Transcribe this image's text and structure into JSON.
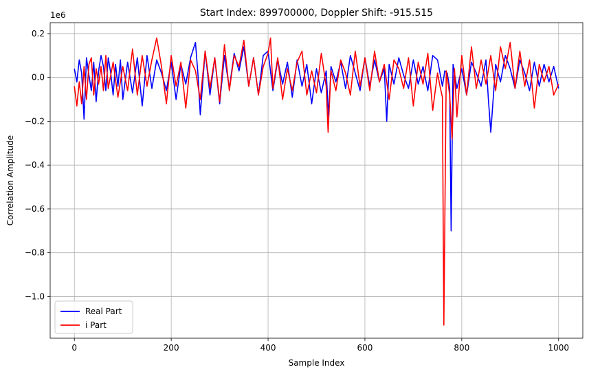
{
  "chart_data": {
    "type": "line",
    "title": "Start Index: 899700000, Doppler Shift: -915.515",
    "xlabel": "Sample Index",
    "ylabel": "Correlation Amplitude",
    "y_offset_label": "1e6",
    "xlim": [
      -50,
      1050
    ],
    "ylim": [
      -1.19,
      0.25
    ],
    "x_ticks": [
      0,
      200,
      400,
      600,
      800,
      1000
    ],
    "x_tick_labels": [
      "0",
      "200",
      "400",
      "600",
      "800",
      "1000"
    ],
    "y_ticks": [
      0.2,
      0.0,
      -0.2,
      -0.4,
      -0.6,
      -0.8,
      -1.0
    ],
    "y_tick_labels": [
      "0.2",
      "0.0",
      "−0.2",
      "−0.4",
      "−0.6",
      "−0.8",
      "−1.0"
    ],
    "grid": true,
    "legend_position": "lower-left",
    "series": [
      {
        "name": "Real Part",
        "color": "#0000ff",
        "x": [
          0,
          5,
          10,
          15,
          20,
          25,
          30,
          35,
          40,
          45,
          50,
          55,
          60,
          65,
          70,
          75,
          80,
          85,
          90,
          95,
          100,
          110,
          120,
          130,
          140,
          150,
          160,
          170,
          180,
          190,
          200,
          210,
          220,
          230,
          240,
          250,
          255,
          260,
          270,
          280,
          290,
          300,
          310,
          320,
          330,
          340,
          350,
          360,
          370,
          380,
          390,
          400,
          410,
          420,
          430,
          440,
          450,
          460,
          470,
          480,
          490,
          500,
          510,
          520,
          525,
          530,
          540,
          550,
          560,
          570,
          580,
          590,
          600,
          610,
          620,
          630,
          640,
          645,
          650,
          660,
          670,
          680,
          690,
          700,
          710,
          720,
          730,
          740,
          750,
          755,
          760,
          765,
          770,
          775,
          778,
          782,
          790,
          800,
          810,
          820,
          830,
          840,
          850,
          855,
          860,
          870,
          880,
          890,
          900,
          910,
          920,
          930,
          940,
          950,
          960,
          970,
          980,
          990,
          1000
        ],
        "y": [
          0.04,
          -0.02,
          0.08,
          0.02,
          -0.19,
          0.09,
          0.01,
          -0.06,
          0.07,
          -0.11,
          0.03,
          0.1,
          0.05,
          -0.06,
          0.09,
          0.02,
          -0.08,
          0.06,
          -0.04,
          0.08,
          -0.1,
          0.07,
          -0.07,
          0.09,
          -0.13,
          0.1,
          -0.05,
          0.08,
          0.02,
          -0.06,
          0.07,
          -0.1,
          0.06,
          -0.03,
          0.09,
          0.16,
          0.02,
          -0.17,
          0.12,
          -0.08,
          0.09,
          -0.12,
          0.1,
          -0.05,
          0.11,
          0.03,
          0.14,
          -0.04,
          0.09,
          -0.08,
          0.1,
          0.12,
          -0.06,
          0.08,
          -0.03,
          0.07,
          -0.09,
          0.08,
          -0.04,
          0.06,
          -0.12,
          0.04,
          -0.07,
          0.03,
          -0.18,
          0.05,
          -0.02,
          0.07,
          -0.05,
          0.1,
          0.02,
          -0.06,
          0.09,
          -0.04,
          0.08,
          -0.02,
          0.04,
          -0.2,
          0.06,
          -0.03,
          0.09,
          0.01,
          -0.05,
          0.08,
          -0.03,
          0.05,
          -0.06,
          0.1,
          0.08,
          0.02,
          -0.04,
          0.03,
          0.02,
          -0.05,
          -0.7,
          0.06,
          -0.05,
          0.04,
          -0.08,
          0.07,
          0.02,
          -0.04,
          0.08,
          -0.1,
          -0.25,
          0.06,
          -0.02,
          0.1,
          0.04,
          -0.05,
          0.08,
          0.02,
          -0.06,
          0.07,
          -0.04,
          0.06,
          -0.02,
          0.05,
          -0.05
        ]
      },
      {
        "name": "i Part",
        "color": "#ff0000",
        "x": [
          0,
          5,
          10,
          15,
          20,
          25,
          30,
          35,
          40,
          45,
          50,
          55,
          60,
          65,
          70,
          80,
          90,
          100,
          110,
          120,
          130,
          140,
          150,
          160,
          170,
          180,
          190,
          200,
          210,
          220,
          230,
          240,
          250,
          260,
          270,
          280,
          290,
          300,
          310,
          320,
          330,
          340,
          350,
          360,
          370,
          380,
          390,
          400,
          405,
          410,
          420,
          430,
          440,
          450,
          460,
          470,
          480,
          490,
          500,
          510,
          520,
          524,
          530,
          540,
          550,
          560,
          570,
          580,
          590,
          600,
          610,
          620,
          630,
          640,
          650,
          660,
          670,
          680,
          690,
          700,
          710,
          720,
          730,
          740,
          750,
          755,
          760,
          763,
          768,
          775,
          780,
          785,
          790,
          800,
          810,
          820,
          830,
          840,
          850,
          860,
          870,
          880,
          890,
          900,
          910,
          920,
          930,
          940,
          950,
          960,
          970,
          980,
          990,
          1000
        ],
        "y": [
          -0.04,
          -0.13,
          -0.02,
          -0.12,
          0.05,
          -0.1,
          0.06,
          0.09,
          -0.08,
          0.04,
          -0.03,
          0.05,
          -0.06,
          0.1,
          -0.05,
          0.07,
          -0.09,
          0.05,
          -0.06,
          0.13,
          -0.08,
          0.1,
          -0.04,
          0.08,
          0.18,
          0.05,
          -0.12,
          0.1,
          -0.04,
          0.07,
          -0.14,
          0.08,
          0.03,
          -0.1,
          0.12,
          -0.05,
          0.09,
          -0.11,
          0.15,
          -0.06,
          0.1,
          0.05,
          0.17,
          -0.04,
          0.09,
          -0.08,
          0.05,
          0.11,
          0.18,
          -0.05,
          0.09,
          -0.1,
          0.04,
          -0.06,
          0.07,
          0.12,
          -0.08,
          0.03,
          -0.07,
          0.11,
          -0.04,
          -0.25,
          0.03,
          -0.06,
          0.08,
          0.02,
          -0.08,
          0.12,
          -0.04,
          0.09,
          -0.06,
          0.12,
          -0.02,
          0.06,
          -0.1,
          0.08,
          0.04,
          -0.05,
          0.09,
          -0.13,
          0.07,
          -0.03,
          0.11,
          -0.15,
          0.02,
          -0.04,
          -0.09,
          -1.13,
          0.03,
          -0.08,
          -0.28,
          0.04,
          -0.18,
          0.1,
          -0.08,
          0.14,
          -0.05,
          0.08,
          -0.03,
          0.1,
          -0.06,
          0.14,
          0.04,
          0.16,
          -0.05,
          0.12,
          -0.04,
          0.08,
          -0.14,
          0.06,
          -0.02,
          0.05,
          -0.08,
          -0.03
        ]
      }
    ]
  }
}
